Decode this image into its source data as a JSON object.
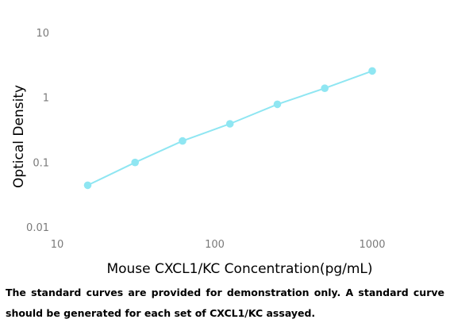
{
  "chart_data": {
    "type": "line",
    "title": "",
    "xlabel": "Mouse CXCL1/KC Concentration(pg/mL)",
    "ylabel": "Optical Density",
    "x_scale": "log",
    "y_scale": "log",
    "xlim": [
      10,
      2000
    ],
    "ylim": [
      0.01,
      10
    ],
    "x_ticks": [
      10,
      100,
      1000
    ],
    "x_tick_labels": [
      "10",
      "100",
      "1000"
    ],
    "y_ticks": [
      0.01,
      0.1,
      1,
      10
    ],
    "y_tick_labels": [
      "0.01",
      "0.1",
      "1",
      "10"
    ],
    "grid": false,
    "legend": "none",
    "series": [
      {
        "color": "#8fe6f2",
        "x": [
          15.625,
          31.25,
          62.5,
          125,
          250,
          500,
          1000
        ],
        "y": [
          0.044,
          0.099,
          0.212,
          0.39,
          0.78,
          1.38,
          2.55
        ]
      }
    ]
  },
  "caption": "The standard curves are provided for demonstration only. A standard curve should be generated for each set of CXCL1/KC assayed."
}
